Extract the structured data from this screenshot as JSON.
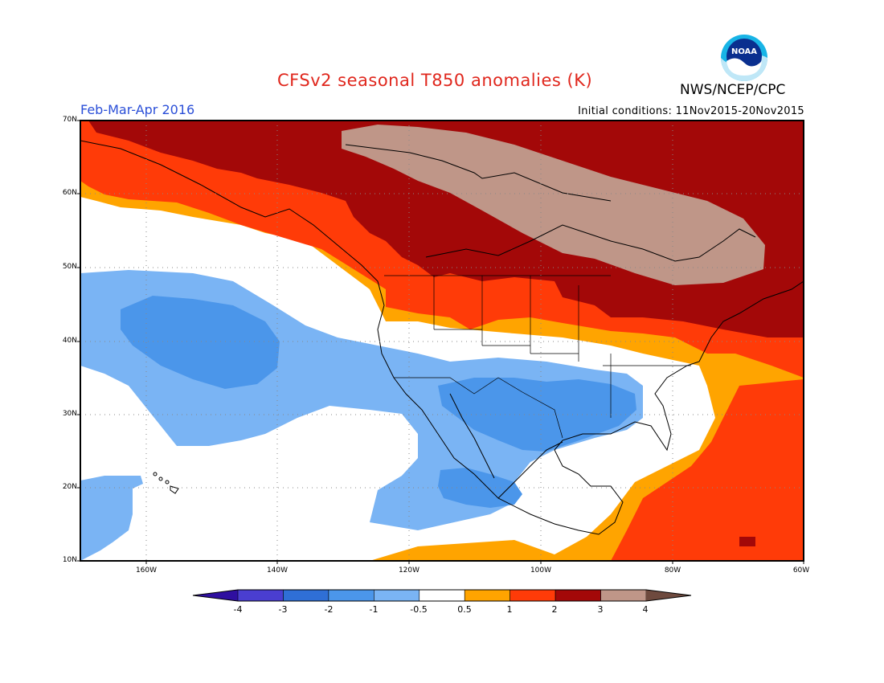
{
  "header": {
    "title": "CFSv2 seasonal T850 anomalies (K)",
    "org": "NWS/NCEP/CPC",
    "period": "Feb-Mar-Apr 2016",
    "initial_conditions": "Initial conditions: 11Nov2015-20Nov2015"
  },
  "logo": {
    "text": "NOAA",
    "icon": "noaa-logo"
  },
  "map": {
    "lat_labels": [
      "70N",
      "60N",
      "50N",
      "40N",
      "30N",
      "20N",
      "10N"
    ],
    "lon_labels": [
      "160W",
      "140W",
      "120W",
      "100W",
      "80W",
      "60W"
    ],
    "lat_range": [
      10,
      70
    ],
    "lon_range": [
      -171,
      -60
    ],
    "grid": true
  },
  "colorbar": {
    "labels": [
      "-4",
      "-3",
      "-2",
      "-1",
      "-0.5",
      "0.5",
      "1",
      "2",
      "3",
      "4"
    ],
    "colors": [
      "#2f0fa0",
      "#4a3ed0",
      "#2f6fd6",
      "#4b96ea",
      "#7ab4f4",
      "#ffffff",
      "#ffa400",
      "#ff3b08",
      "#a30808",
      "#bf9688",
      "#6e4a3e"
    ],
    "unit": "K"
  },
  "colors": {
    "below_lt": "#7ab4f4",
    "below_md": "#4b96ea",
    "above_1": "#ffa400",
    "above_2": "#ff3b08",
    "above_3": "#a30808",
    "above_4": "#bf9688"
  }
}
